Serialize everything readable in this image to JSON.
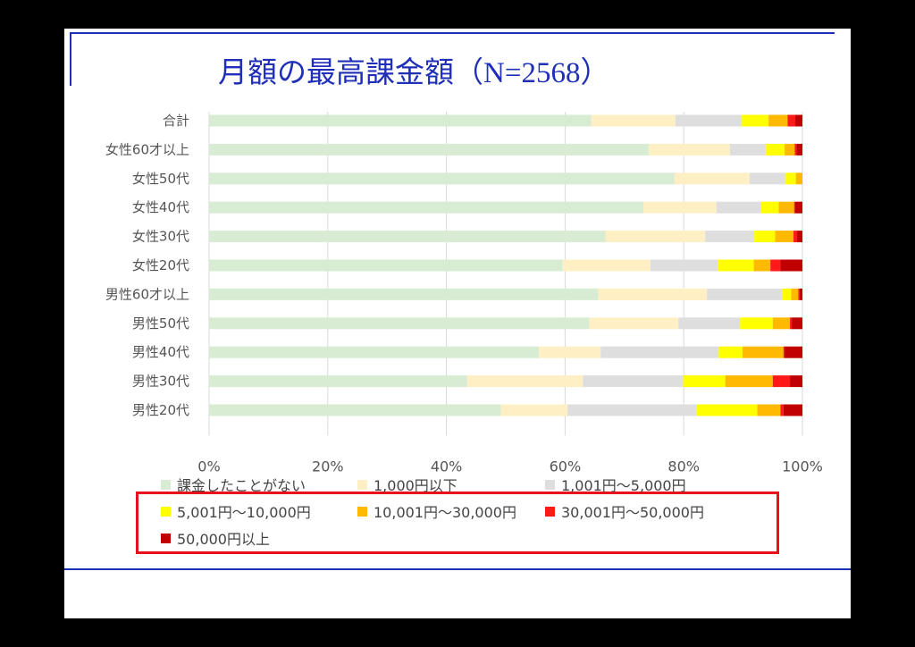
{
  "title": {
    "main": "月額の最高課金額",
    "n": "（N=2568）"
  },
  "chart_data": {
    "type": "bar",
    "orientation": "horizontal",
    "stacked": "percent",
    "categories": [
      "合計",
      "女性60才以上",
      "女性50代",
      "女性40代",
      "女性30代",
      "女性20代",
      "男性60才以上",
      "男性50代",
      "男性40代",
      "男性30代",
      "男性20代"
    ],
    "series": [
      {
        "name": "課金したことがない",
        "color": "#d7ecd3",
        "values": [
          64.4,
          74.1,
          78.4,
          73.2,
          66.8,
          59.6,
          65.6,
          64.1,
          55.6,
          43.5,
          49.2
        ]
      },
      {
        "name": "1,000円以下",
        "color": "#ffefc4",
        "values": [
          14.2,
          13.7,
          12.7,
          12.3,
          16.8,
          14.8,
          18.3,
          15.0,
          10.4,
          19.5,
          11.2
        ]
      },
      {
        "name": "1,001円～5,000円",
        "color": "#dedede",
        "values": [
          11.2,
          6.0,
          6.0,
          7.5,
          8.3,
          11.3,
          12.7,
          10.4,
          19.9,
          16.9,
          21.8
        ]
      },
      {
        "name": "5,001円～10,000円",
        "color": "#ffff00",
        "values": [
          4.5,
          3.2,
          1.8,
          3.0,
          3.5,
          6.1,
          1.5,
          5.5,
          4.0,
          7.1,
          10.2
        ]
      },
      {
        "name": "10,001円～30,000円",
        "color": "#ffb900",
        "values": [
          3.2,
          1.7,
          1.1,
          2.6,
          3.1,
          2.8,
          1.2,
          2.9,
          6.9,
          8.0,
          3.9
        ]
      },
      {
        "name": "30,001円～50,000円",
        "color": "#ff1a1a",
        "values": [
          1.3,
          0.3,
          0.0,
          0.2,
          0.6,
          1.7,
          0.2,
          0.3,
          0.2,
          2.9,
          0.5
        ]
      },
      {
        "name": "50,000円以上",
        "color": "#c00000",
        "values": [
          1.2,
          1.0,
          0.0,
          1.2,
          0.9,
          3.7,
          0.5,
          1.8,
          3.0,
          2.1,
          3.2
        ]
      }
    ],
    "xlim": [
      0,
      100
    ],
    "xticks": [
      "0%",
      "20%",
      "40%",
      "60%",
      "80%",
      "100%"
    ],
    "grid": true,
    "legend_position": "bottom"
  }
}
